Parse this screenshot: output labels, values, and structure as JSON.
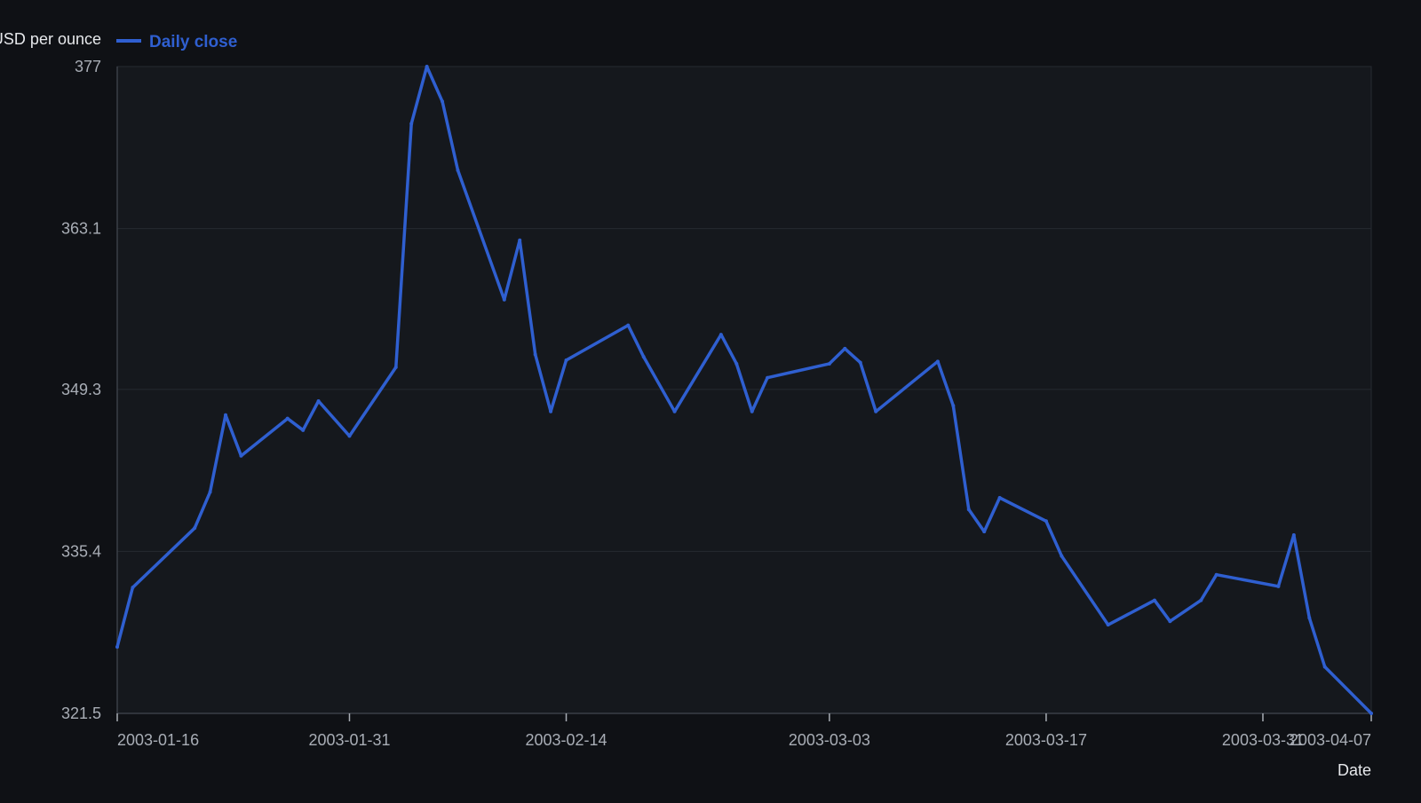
{
  "colors": {
    "background": "#0f1115",
    "plot_background": "#15181d",
    "grid": "#262a31",
    "axis": "#3a3f47",
    "tick_text": "#a8adb5",
    "label_text": "#e6e8eb",
    "series": "#2f5fd0"
  },
  "chart_data": {
    "type": "line",
    "xlabel": "Date",
    "ylabel": "USD per ounce",
    "ylim": [
      321.5,
      377
    ],
    "yticks": [
      321.5,
      335.4,
      349.3,
      363.1,
      377
    ],
    "ytick_labels": [
      "321.5",
      "335.4",
      "349.3",
      "363.1",
      "377"
    ],
    "xlim": [
      "2003-01-16",
      "2003-04-07"
    ],
    "xticks": [
      "2003-01-16",
      "2003-01-31",
      "2003-02-14",
      "2003-03-03",
      "2003-03-17",
      "2003-03-31",
      "2003-04-07"
    ],
    "grid": true,
    "legend": {
      "placement": "top-left"
    },
    "series": [
      {
        "name": "Daily close",
        "x": [
          "2003-01-16",
          "2003-01-17",
          "2003-01-21",
          "2003-01-22",
          "2003-01-23",
          "2003-01-24",
          "2003-01-27",
          "2003-01-28",
          "2003-01-29",
          "2003-01-31",
          "2003-02-03",
          "2003-02-04",
          "2003-02-05",
          "2003-02-06",
          "2003-02-07",
          "2003-02-10",
          "2003-02-11",
          "2003-02-12",
          "2003-02-13",
          "2003-02-14",
          "2003-02-18",
          "2003-02-19",
          "2003-02-21",
          "2003-02-24",
          "2003-02-25",
          "2003-02-26",
          "2003-02-27",
          "2003-03-03",
          "2003-03-04",
          "2003-03-05",
          "2003-03-06",
          "2003-03-10",
          "2003-03-11",
          "2003-03-12",
          "2003-03-13",
          "2003-03-14",
          "2003-03-17",
          "2003-03-18",
          "2003-03-21",
          "2003-03-24",
          "2003-03-25",
          "2003-03-27",
          "2003-03-28",
          "2003-04-01",
          "2003-04-02",
          "2003-04-03",
          "2003-04-04",
          "2003-04-07"
        ],
        "values": [
          327.2,
          332.3,
          337.4,
          340.5,
          347.1,
          343.6,
          346.8,
          345.8,
          348.3,
          345.3,
          351.2,
          372.1,
          377.0,
          374.0,
          368.1,
          357.0,
          362.1,
          352.3,
          347.4,
          351.8,
          354.8,
          352.1,
          347.4,
          354.0,
          351.5,
          347.4,
          350.3,
          351.5,
          352.8,
          351.6,
          347.4,
          351.7,
          347.9,
          339.0,
          337.1,
          340.0,
          338.0,
          335.0,
          329.1,
          331.2,
          329.4,
          331.2,
          333.4,
          332.4,
          336.8,
          329.7,
          325.5,
          321.5
        ]
      }
    ]
  }
}
